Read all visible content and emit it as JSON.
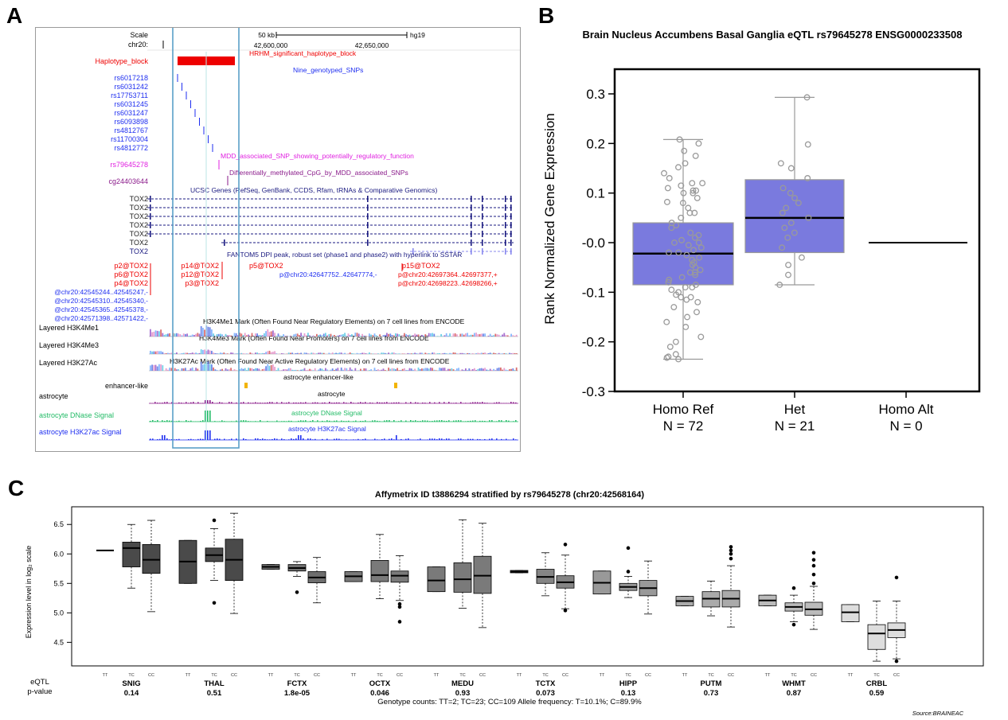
{
  "panel_labels": {
    "a": "A",
    "b": "B",
    "c": "C"
  },
  "browser": {
    "scale_label": "Scale",
    "scale_bar_text": "50 kb",
    "assembly": "hg19",
    "chrom_label": "chr20:",
    "pos_ticks": [
      "42,600,000",
      "42,650,000"
    ],
    "haplotype_track_label": "Haplotype_block",
    "haplotype_annotation": "HRHM_significant_haplotype_block",
    "snp_annotation": "Nine_genotyped_SNPs",
    "snps": [
      "rs6017218",
      "rs6031242",
      "rs17753711",
      "rs6031245",
      "rs6031247",
      "rs6093898",
      "rs4812767",
      "rs11700304",
      "rs4812772"
    ],
    "mdd_snp_annotation": "MDD_associated_SNP_showing_potentially_regulatory_function",
    "mdd_snp": "rs79645278",
    "cpg_annotation": "Differentially_methylated_CpG_by_MDD_associated_SNPs",
    "cpg": "cg24403644",
    "genes_track_title": "UCSC Genes (RefSeq, GenBank, CCDS, Rfam, tRNAs & Comparative Genomics)",
    "genes": [
      "TOX2",
      "TOX2",
      "TOX2",
      "TOX2",
      "TOX2",
      "TOX2",
      "TOX2"
    ],
    "fantom_title": "FANTOM5 DPI peak, robust set (phase1 and phase2) with hyperlink to SSTAR",
    "fantom_left": [
      "p2@TOX2",
      "p6@TOX2",
      "p4@TOX2"
    ],
    "fantom_mid": [
      "p14@TOX2",
      "p12@TOX2",
      "p3@TOX2"
    ],
    "fantom_p5": "p5@TOX2",
    "fantom_p15": "p15@TOX2",
    "fantom_chr_mid": "p@chr20:42647752..42647774,-",
    "fantom_chr_right": [
      "p@chr20:42697364..42697377,+",
      "p@chr20:42698223..42698266,+"
    ],
    "fantom_chr_left": [
      "@chr20:42545244..42545247,-",
      "@chr20:42545310..42545340,-",
      "@chr20:42545365..42545378,-",
      "@chr20:42571398..42571422,-"
    ],
    "h3k4me1_label": "Layered H3K4Me1",
    "h3k4me1_title": "H3K4Me1 Mark (Often Found Near Regulatory Elements) on 7 cell lines from ENCODE",
    "h3k4me3_label": "Layered H3K4Me3",
    "h3k4me3_title": "H3K4Me3 Mark (Often Found Near Promoters) on 7 cell lines from ENCODE",
    "h3k27ac_label": "Layered H3K27Ac",
    "h3k27ac_title": "H3K27Ac Mark (Often Found Near Active Regulatory Elements) on 7 cell lines from ENCODE",
    "enhancer_label": "enhancer-like",
    "enhancer_title": "astrocyte enhancer-like",
    "astro_label": "astrocyte",
    "astro_title": "astrocyte",
    "dnase_label": "astrocyte DNase Signal",
    "dnase_title": "astrocyte DNase Signal",
    "h3k27ac_astro_label": "astrocyte H3K27ac Signal",
    "h3k27ac_astro_title": "astrocyte H3K27ac Signal"
  },
  "colors": {
    "red": "#ee0000",
    "blue": "#1f2ff0",
    "magenta": "#e020e0",
    "purple": "#8a1a8a",
    "navy": "#1a1a80",
    "green": "#22bb66",
    "box_blue": "#7a7ade",
    "highlight": "#5aa0c8"
  },
  "chart_data": [
    {
      "type": "box",
      "title": "Brain Nucleus Accumbens Basal Ganglia eQTL rs79645278 ENSG0000233508",
      "ylabel": "Rank Normalized Gene Expression",
      "ylim": [
        -0.3,
        0.35
      ],
      "yticks": [
        "0.3",
        "0.2",
        "0.1",
        "-0.0",
        "-0.1",
        "-0.2",
        "-0.3"
      ],
      "groups": [
        {
          "label": "Homo Ref",
          "n_label": "N = 72",
          "q1": -0.085,
          "median": -0.022,
          "q3": 0.04,
          "min": -0.235,
          "max": 0.208
        },
        {
          "label": "Het",
          "n_label": "N = 21",
          "q1": -0.02,
          "median": 0.05,
          "q3": 0.127,
          "min": -0.085,
          "max": 0.293
        },
        {
          "label": "Homo Alt",
          "n_label": "N = 0",
          "median": 0.0,
          "empty": true
        }
      ],
      "points_group1": [
        0.208,
        0.2,
        0.185,
        0.175,
        0.16,
        0.152,
        0.14,
        0.13,
        0.12,
        0.115,
        0.11,
        0.105,
        0.1,
        0.09,
        0.082,
        0.07,
        0.06,
        0.05,
        0.04,
        0.035,
        0.03,
        0.02,
        0.015,
        0.01,
        0.005,
        0.0,
        -0.005,
        -0.01,
        -0.015,
        -0.02,
        -0.025,
        -0.03,
        -0.035,
        -0.04,
        -0.045,
        -0.05,
        -0.055,
        -0.06,
        -0.065,
        -0.07,
        -0.075,
        -0.08,
        -0.085,
        -0.09,
        -0.095,
        -0.1,
        -0.105,
        -0.11,
        -0.115,
        -0.12,
        -0.13,
        -0.14,
        -0.15,
        -0.16,
        -0.17,
        -0.19,
        -0.2,
        -0.21,
        -0.225,
        -0.235,
        -0.232,
        -0.23,
        -0.11,
        -0.09,
        -0.06,
        0.06,
        0.08,
        0.1,
        0.12,
        0.105,
        -0.02,
        0.0
      ],
      "points_group2": [
        0.293,
        0.198,
        0.16,
        0.15,
        0.13,
        0.11,
        0.1,
        0.09,
        0.08,
        0.07,
        0.06,
        0.05,
        0.04,
        0.03,
        0.02,
        0.01,
        -0.01,
        -0.03,
        -0.045,
        -0.065,
        -0.085
      ]
    },
    {
      "type": "box",
      "title": "Affymetrix ID t3886294 stratified by rs79645278 (chr20:42568164)",
      "ylabel": "Expression level in log₂ scale",
      "ylim": [
        4.1,
        6.8
      ],
      "yticks": [
        "6.5",
        "6.0",
        "5.5",
        "5.0",
        "4.5"
      ],
      "genotypes": [
        "TT",
        "TC",
        "CC"
      ],
      "eqtl_label": "eQTL",
      "pvalue_label": "p-value",
      "footer": "Genotype counts: TT=2; TC=23; CC=109  Allele frequency: T=10.1%; C=89.9%",
      "source": "Source:BRAINEAC",
      "regions": [
        {
          "name": "SNIG",
          "p": "0.14",
          "shade": "#4a4a4a",
          "boxes": [
            {
              "q1": 6.06,
              "med": 6.06,
              "q3": 6.06,
              "lo": 6.06,
              "hi": 6.06,
              "out": []
            },
            {
              "q1": 5.78,
              "med": 6.1,
              "q3": 6.2,
              "lo": 5.42,
              "hi": 6.5,
              "out": []
            },
            {
              "q1": 5.67,
              "med": 5.9,
              "q3": 6.16,
              "lo": 5.02,
              "hi": 6.57,
              "out": []
            }
          ]
        },
        {
          "name": "THAL",
          "p": "0.51",
          "shade": "#4a4a4a",
          "boxes": [
            {
              "q1": 5.5,
              "med": 5.87,
              "q3": 6.23,
              "lo": 5.5,
              "hi": 6.23,
              "out": []
            },
            {
              "q1": 5.87,
              "med": 5.98,
              "q3": 6.1,
              "lo": 5.55,
              "hi": 6.43,
              "out": [
                6.57,
                5.17
              ]
            },
            {
              "q1": 5.55,
              "med": 5.9,
              "q3": 6.25,
              "lo": 4.99,
              "hi": 6.69,
              "out": []
            }
          ]
        },
        {
          "name": "FCTX",
          "p": "1.8e-05",
          "shade": "#6e6e6e",
          "boxes": [
            {
              "q1": 5.74,
              "med": 5.78,
              "q3": 5.82,
              "lo": 5.74,
              "hi": 5.82,
              "out": []
            },
            {
              "q1": 5.71,
              "med": 5.76,
              "q3": 5.82,
              "lo": 5.62,
              "hi": 5.87,
              "out": [
                5.35
              ]
            },
            {
              "q1": 5.51,
              "med": 5.6,
              "q3": 5.7,
              "lo": 5.17,
              "hi": 5.94,
              "out": []
            }
          ]
        },
        {
          "name": "OCTX",
          "p": "0.046",
          "shade": "#7a7a7a",
          "boxes": [
            {
              "q1": 5.53,
              "med": 5.62,
              "q3": 5.7,
              "lo": 5.53,
              "hi": 5.7,
              "out": []
            },
            {
              "q1": 5.53,
              "med": 5.64,
              "q3": 5.89,
              "lo": 5.24,
              "hi": 6.33,
              "out": []
            },
            {
              "q1": 5.52,
              "med": 5.63,
              "q3": 5.71,
              "lo": 5.21,
              "hi": 5.97,
              "out": [
                5.15,
                5.1,
                4.85
              ]
            }
          ]
        },
        {
          "name": "MEDU",
          "p": "0.93",
          "shade": "#7a7a7a",
          "boxes": [
            {
              "q1": 5.36,
              "med": 5.55,
              "q3": 5.78,
              "lo": 5.36,
              "hi": 5.78,
              "out": []
            },
            {
              "q1": 5.35,
              "med": 5.57,
              "q3": 5.85,
              "lo": 5.08,
              "hi": 6.58,
              "out": []
            },
            {
              "q1": 5.33,
              "med": 5.63,
              "q3": 5.96,
              "lo": 4.75,
              "hi": 6.52,
              "out": []
            }
          ]
        },
        {
          "name": "TCTX",
          "p": "0.073",
          "shade": "#858585",
          "boxes": [
            {
              "q1": 5.68,
              "med": 5.7,
              "q3": 5.72,
              "lo": 5.68,
              "hi": 5.72,
              "out": []
            },
            {
              "q1": 5.5,
              "med": 5.61,
              "q3": 5.74,
              "lo": 5.29,
              "hi": 6.02,
              "out": []
            },
            {
              "q1": 5.42,
              "med": 5.52,
              "q3": 5.63,
              "lo": 5.07,
              "hi": 5.98,
              "out": [
                6.16,
                5.04
              ]
            }
          ]
        },
        {
          "name": "HIPP",
          "p": "0.13",
          "shade": "#999999",
          "boxes": [
            {
              "q1": 5.32,
              "med": 5.51,
              "q3": 5.71,
              "lo": 5.32,
              "hi": 5.71,
              "out": []
            },
            {
              "q1": 5.38,
              "med": 5.44,
              "q3": 5.5,
              "lo": 5.26,
              "hi": 5.62,
              "out": [
                6.1,
                5.7
              ]
            },
            {
              "q1": 5.29,
              "med": 5.42,
              "q3": 5.55,
              "lo": 4.98,
              "hi": 5.88,
              "out": []
            }
          ]
        },
        {
          "name": "PUTM",
          "p": "0.73",
          "shade": "#aaaaaa",
          "boxes": [
            {
              "q1": 5.12,
              "med": 5.2,
              "q3": 5.28,
              "lo": 5.12,
              "hi": 5.28,
              "out": []
            },
            {
              "q1": 5.1,
              "med": 5.24,
              "q3": 5.36,
              "lo": 4.95,
              "hi": 5.54,
              "out": []
            },
            {
              "q1": 5.1,
              "med": 5.24,
              "q3": 5.38,
              "lo": 4.76,
              "hi": 5.8,
              "out": [
                6.12,
                6.06,
                6.0,
                5.92
              ]
            }
          ]
        },
        {
          "name": "WHMT",
          "p": "0.87",
          "shade": "#bbbbbb",
          "boxes": [
            {
              "q1": 5.12,
              "med": 5.21,
              "q3": 5.3,
              "lo": 5.12,
              "hi": 5.3,
              "out": []
            },
            {
              "q1": 5.03,
              "med": 5.1,
              "q3": 5.17,
              "lo": 4.85,
              "hi": 5.3,
              "out": [
                5.42,
                4.8
              ]
            },
            {
              "q1": 4.96,
              "med": 5.06,
              "q3": 5.18,
              "lo": 4.72,
              "hi": 5.45,
              "out": [
                6.02,
                5.9,
                5.8,
                5.65,
                5.5
              ]
            }
          ]
        },
        {
          "name": "CRBL",
          "p": "0.59",
          "shade": "#dddddd",
          "boxes": [
            {
              "q1": 4.85,
              "med": 5.01,
              "q3": 5.14,
              "lo": 4.85,
              "hi": 5.14,
              "out": []
            },
            {
              "q1": 4.38,
              "med": 4.65,
              "q3": 4.8,
              "lo": 4.18,
              "hi": 5.2,
              "out": []
            },
            {
              "q1": 4.58,
              "med": 4.71,
              "q3": 4.83,
              "lo": 4.22,
              "hi": 5.2,
              "out": [
                5.6,
                4.18
              ]
            }
          ]
        }
      ]
    }
  ]
}
